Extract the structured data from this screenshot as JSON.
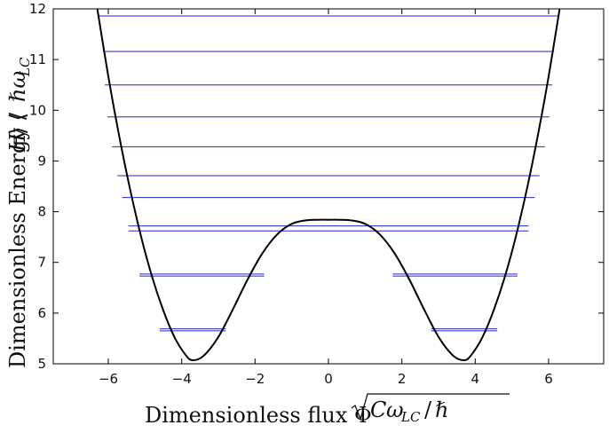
{
  "chart_data": {
    "type": "line",
    "xlabel": "Dimensionless flux Φ√(Cω_LC/ℏ)",
    "ylabel": "Dimensionless Energy ⟨H⟩/ℏω_LC",
    "xlim": [
      -7.5,
      7.5
    ],
    "ylim": [
      5,
      12
    ],
    "xticks": [
      -6,
      -4,
      -2,
      0,
      2,
      4,
      6
    ],
    "yticks": [
      5,
      6,
      7,
      8,
      9,
      10,
      11,
      12
    ],
    "grid": false,
    "series": [
      {
        "style": "potential-curve",
        "color": "#000000",
        "x": [
          -6.3,
          -6.0,
          -5.7,
          -5.4,
          -5.1,
          -4.8,
          -4.5,
          -4.2,
          -3.9,
          -3.7,
          -3.4,
          -3.0,
          -2.6,
          -2.2,
          -1.8,
          -1.4,
          -1.0,
          -0.6,
          -0.3,
          0,
          0.3,
          0.6,
          1.0,
          1.4,
          1.8,
          2.2,
          2.6,
          3.0,
          3.4,
          3.7,
          3.9,
          4.2,
          4.5,
          4.8,
          5.1,
          5.4,
          5.7,
          6.0,
          6.3
        ],
        "y": [
          12.0,
          10.67,
          9.48,
          8.42,
          7.49,
          6.7,
          6.05,
          5.53,
          5.18,
          5.07,
          5.16,
          5.53,
          6.08,
          6.67,
          7.18,
          7.55,
          7.76,
          7.83,
          7.84,
          7.84,
          7.84,
          7.83,
          7.76,
          7.55,
          7.18,
          6.67,
          6.08,
          5.53,
          5.16,
          5.07,
          5.18,
          5.53,
          6.05,
          6.7,
          7.49,
          8.42,
          9.48,
          10.67,
          12.0
        ]
      }
    ],
    "energy_levels": {
      "color": "#2626c0",
      "levels": [
        {
          "E": 5.65,
          "x_ranges": [
            [
              -4.6,
              -2.8
            ],
            [
              2.8,
              4.6
            ]
          ]
        },
        {
          "E": 5.69,
          "x_ranges": [
            [
              -4.6,
              -2.8
            ],
            [
              2.8,
              4.6
            ]
          ]
        },
        {
          "E": 6.73,
          "x_ranges": [
            [
              -5.15,
              -1.75
            ],
            [
              1.75,
              5.15
            ]
          ]
        },
        {
          "E": 6.77,
          "x_ranges": [
            [
              -5.15,
              -1.75
            ],
            [
              1.75,
              5.15
            ]
          ]
        },
        {
          "E": 7.62,
          "x_ranges": [
            [
              -5.45,
              5.45
            ]
          ]
        },
        {
          "E": 7.72,
          "x_ranges": [
            [
              -5.45,
              5.45
            ]
          ]
        },
        {
          "E": 8.28,
          "x_ranges": [
            [
              -5.62,
              5.62
            ]
          ]
        },
        {
          "E": 8.71,
          "x_ranges": [
            [
              -5.75,
              5.75
            ]
          ]
        },
        {
          "E": 9.28,
          "x_ranges": [
            [
              -5.9,
              5.9
            ]
          ]
        },
        {
          "E": 9.87,
          "x_ranges": [
            [
              -6.02,
              6.02
            ]
          ]
        },
        {
          "E": 10.5,
          "x_ranges": [
            [
              -6.1,
              6.1
            ]
          ]
        },
        {
          "E": 11.16,
          "x_ranges": [
            [
              -6.15,
              6.15
            ]
          ]
        },
        {
          "E": 11.86,
          "x_ranges": [
            [
              -6.25,
              6.25
            ]
          ]
        }
      ]
    }
  }
}
